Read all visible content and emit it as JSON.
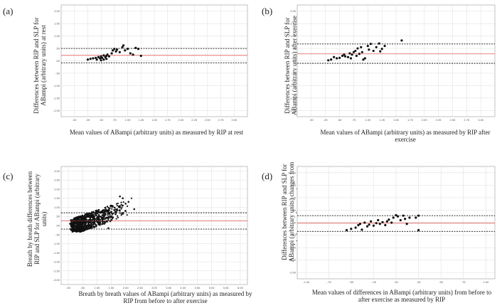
{
  "chart_data": [
    {
      "type": "scatter",
      "panel": "(a)",
      "ylabel": "Differences between RIP and SLP for ABampi (arbitrary units) at rest",
      "xlabel": "Mean values of ABampi (arbitrary units) as measured by RIP at rest",
      "xlim": [
        -0.25,
        3.25
      ],
      "ylim": [
        -2.25,
        2.25
      ],
      "xticks": [
        ".00",
        ".25",
        ".50",
        ".75",
        "1.00",
        "1.25",
        "1.50",
        "1.75",
        "2.00",
        "2.25",
        "2.50",
        "2.75",
        "3.00"
      ],
      "yticks": [
        "2.00",
        "1.50",
        "1.00",
        ".50",
        ".00",
        "-.50",
        "-1.00",
        "-1.50",
        "-2.00"
      ],
      "mean_line": 0.22,
      "limits": [
        0.5,
        -0.08
      ],
      "points": [
        [
          0.25,
          0.05
        ],
        [
          0.3,
          0.08
        ],
        [
          0.35,
          0.1
        ],
        [
          0.4,
          0.12
        ],
        [
          0.42,
          0.05
        ],
        [
          0.45,
          0.15
        ],
        [
          0.48,
          0.1
        ],
        [
          0.5,
          0.02
        ],
        [
          0.5,
          0.18
        ],
        [
          0.52,
          0.12
        ],
        [
          0.55,
          0.22
        ],
        [
          0.55,
          0.05
        ],
        [
          0.58,
          0.15
        ],
        [
          0.6,
          0.2
        ],
        [
          0.6,
          0.08
        ],
        [
          0.62,
          0.25
        ],
        [
          0.65,
          0.18
        ],
        [
          0.7,
          0.3
        ],
        [
          0.72,
          0.42
        ],
        [
          0.75,
          0.48
        ],
        [
          0.78,
          0.38
        ],
        [
          0.8,
          0.45
        ],
        [
          0.85,
          0.35
        ],
        [
          0.9,
          0.55
        ],
        [
          0.92,
          0.62
        ],
        [
          0.95,
          0.42
        ],
        [
          1.0,
          0.48
        ],
        [
          1.05,
          0.3
        ],
        [
          1.1,
          0.25
        ],
        [
          1.15,
          0.52
        ],
        [
          1.2,
          0.48
        ],
        [
          1.25,
          0.2
        ]
      ]
    },
    {
      "type": "scatter",
      "panel": "(b)",
      "ylabel": "Differences between RIP and SLP for ABampi (arbitrary units) after exercise",
      "xlabel": "Mean values of ABampi (arbitrary units) as measured by RIP after exercise",
      "xlim": [
        -0.25,
        3.25
      ],
      "ylim": [
        -2.25,
        2.25
      ],
      "xticks": [
        ".00",
        ".25",
        ".50",
        ".75",
        "1.00",
        "1.25",
        "1.50",
        "1.75",
        "2.00",
        "2.25",
        "2.50",
        "2.75",
        "3.00"
      ],
      "yticks": [
        "2.00",
        "1.50",
        "1.00",
        ".50",
        ".00",
        "-.50",
        "-1.00",
        "-1.50",
        "-2.00"
      ],
      "mean_line": 0.28,
      "limits": [
        0.68,
        -0.1
      ],
      "points": [
        [
          0.3,
          0.02
        ],
        [
          0.35,
          0.05
        ],
        [
          0.4,
          0.15
        ],
        [
          0.45,
          0.1
        ],
        [
          0.5,
          0.12
        ],
        [
          0.55,
          0.2
        ],
        [
          0.58,
          0.25
        ],
        [
          0.6,
          0.18
        ],
        [
          0.65,
          0.15
        ],
        [
          0.68,
          0.3
        ],
        [
          0.7,
          0.1
        ],
        [
          0.72,
          0.25
        ],
        [
          0.75,
          0.35
        ],
        [
          0.78,
          0.4
        ],
        [
          0.8,
          0.2
        ],
        [
          0.82,
          0.5
        ],
        [
          0.85,
          0.28
        ],
        [
          0.88,
          0.55
        ],
        [
          0.9,
          0.35
        ],
        [
          0.92,
          0.05
        ],
        [
          0.95,
          0.1
        ],
        [
          1.0,
          0.6
        ],
        [
          1.02,
          0.45
        ],
        [
          1.05,
          0.68
        ],
        [
          1.1,
          0.4
        ],
        [
          1.15,
          0.55
        ],
        [
          1.2,
          0.7
        ],
        [
          1.22,
          0.38
        ],
        [
          1.25,
          0.48
        ],
        [
          1.3,
          0.6
        ],
        [
          1.6,
          0.82
        ]
      ]
    },
    {
      "type": "scatter",
      "panel": "(c)",
      "ylabel": "Breath by breath differences between RIP and SLP for ABampi (arbitrary units)",
      "xlabel": "Breath by breath values of ABampi (arbitrary units) as measured by RIP from before to after exercise",
      "xlim": [
        -0.25,
        6.25
      ],
      "ylim": [
        -3.25,
        3.25
      ],
      "xticks": [
        ".00",
        ".50",
        "1.00",
        "1.50",
        "2.00",
        "2.50",
        "3.00",
        "3.50",
        "4.00",
        "4.50",
        "5.00",
        "5.50",
        "6.00"
      ],
      "yticks": [
        "3.00",
        "2.50",
        "2.00",
        "1.50",
        "1.00",
        ".50",
        ".00",
        "-.50",
        "-1.00",
        "-1.50",
        "-2.00",
        "-2.50",
        "-3.00"
      ],
      "mean_line": 0.25,
      "limits": [
        0.7,
        -0.2
      ],
      "points": [
        [
          0.1,
          -0.05
        ],
        [
          0.2,
          0.05
        ],
        [
          0.3,
          0.0
        ],
        [
          0.4,
          0.1
        ],
        [
          0.5,
          0.15
        ],
        [
          0.6,
          0.2
        ],
        [
          0.7,
          0.25
        ],
        [
          0.8,
          0.3
        ],
        [
          0.9,
          0.35
        ],
        [
          1.0,
          0.4
        ],
        [
          1.1,
          0.5
        ],
        [
          1.2,
          0.55
        ],
        [
          1.3,
          0.6
        ],
        [
          1.4,
          0.7
        ],
        [
          1.5,
          0.75
        ],
        [
          1.6,
          0.85
        ],
        [
          1.7,
          0.9
        ],
        [
          1.8,
          1.0
        ],
        [
          1.9,
          1.1
        ],
        [
          2.0,
          1.2
        ],
        [
          2.1,
          1.3
        ],
        [
          1.8,
          1.6
        ],
        [
          1.9,
          1.5
        ],
        [
          2.0,
          0.8
        ],
        [
          1.5,
          0.3
        ],
        [
          1.2,
          0.1
        ],
        [
          0.9,
          -0.1
        ],
        [
          0.6,
          -0.2
        ],
        [
          2.3,
          0.9
        ],
        [
          1.4,
          -0.15
        ]
      ]
    },
    {
      "type": "scatter",
      "panel": "(d)",
      "ylabel": "Differences between RIP and SLP for ABampi (arbitrary units) changes from before to after exercise",
      "xlabel": "Mean values of differences in ABampi (arbitrary units) from before to after exercise as measured by RIP",
      "xlim": [
        -1.1,
        1.1
      ],
      "ylim": [
        -2.25,
        2.25
      ],
      "xticks": [
        "-1.00",
        "-.75",
        "-.50",
        "-.25",
        ".00",
        ".25",
        ".50",
        ".75",
        "1.00"
      ],
      "yticks": [
        "2.00",
        "1.50",
        "1.00",
        ".50",
        ".00",
        "-.50",
        "-1.00",
        "-1.50",
        "-2.00"
      ],
      "mean_line": -0.02,
      "limits": [
        0.28,
        -0.35
      ],
      "points": [
        [
          -0.55,
          -0.3
        ],
        [
          -0.5,
          -0.25
        ],
        [
          -0.45,
          -0.2
        ],
        [
          -0.42,
          -0.1
        ],
        [
          -0.4,
          -0.05
        ],
        [
          -0.38,
          -0.28
        ],
        [
          -0.35,
          0.0
        ],
        [
          -0.32,
          -0.15
        ],
        [
          -0.3,
          -0.08
        ],
        [
          -0.28,
          0.05
        ],
        [
          -0.25,
          -0.12
        ],
        [
          -0.22,
          -0.02
        ],
        [
          -0.2,
          0.1
        ],
        [
          -0.18,
          -0.05
        ],
        [
          -0.15,
          0.02
        ],
        [
          -0.12,
          -0.1
        ],
        [
          -0.1,
          0.05
        ],
        [
          -0.08,
          0.12
        ],
        [
          -0.05,
          0.0
        ],
        [
          -0.03,
          0.2
        ],
        [
          0.0,
          0.3
        ],
        [
          0.02,
          0.25
        ],
        [
          0.05,
          0.1
        ],
        [
          0.08,
          0.28
        ],
        [
          0.1,
          0.15
        ],
        [
          0.12,
          -0.05
        ],
        [
          0.15,
          0.2
        ],
        [
          0.22,
          0.2
        ],
        [
          0.25,
          0.28
        ],
        [
          0.25,
          -0.3
        ]
      ]
    }
  ]
}
